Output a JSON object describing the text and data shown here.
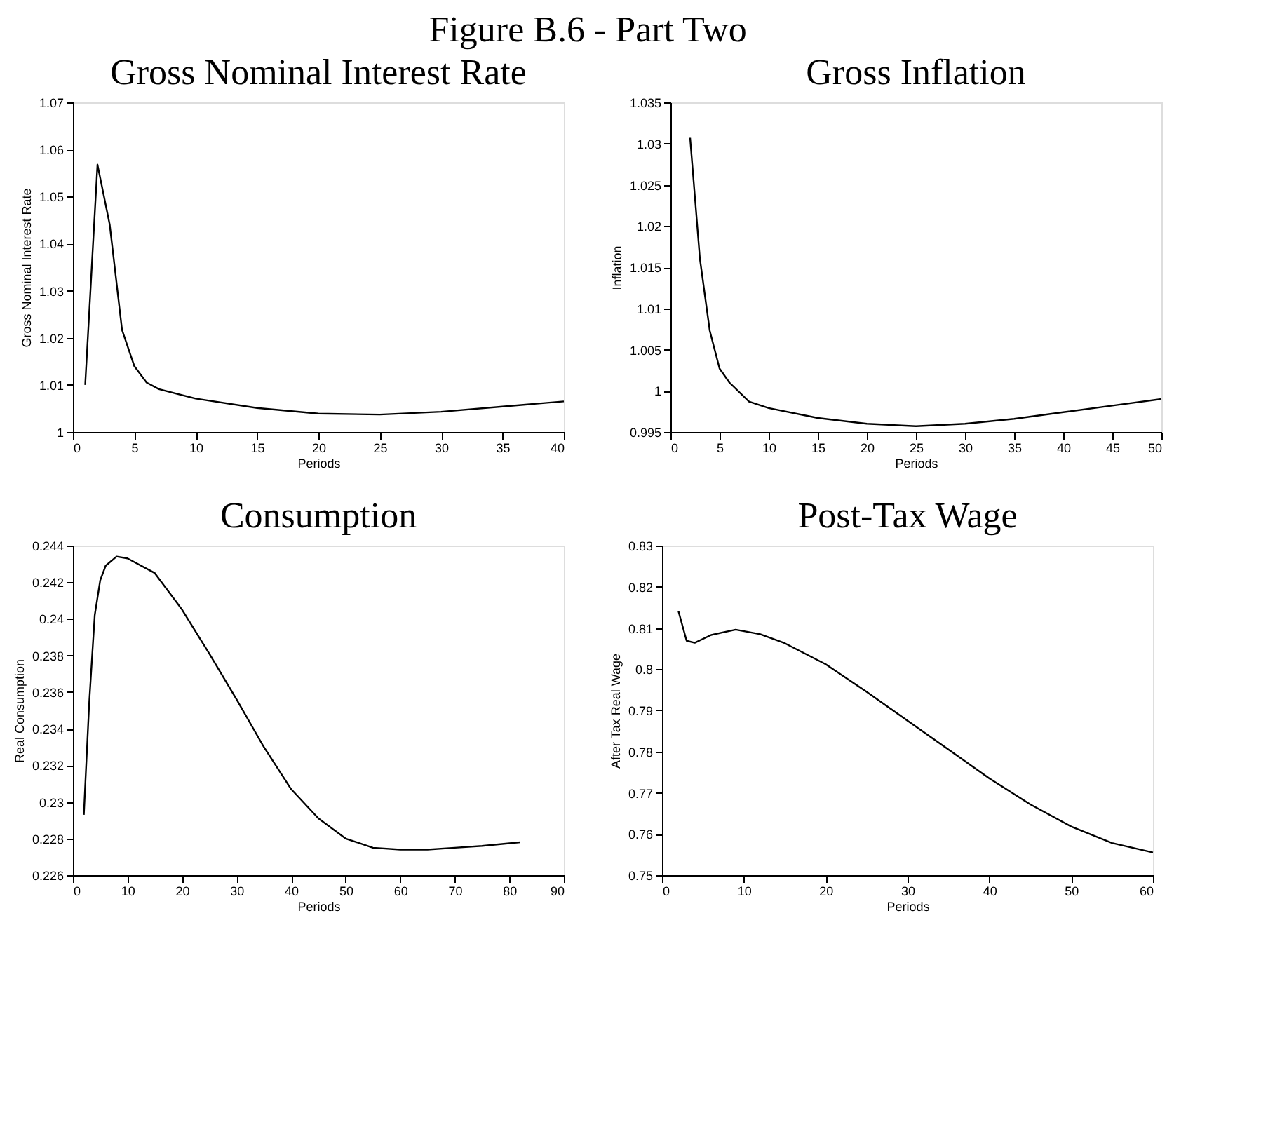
{
  "chart_data": [
    {
      "type": "line",
      "title": "Gross Nominal Interest Rate",
      "annotations": [
        "Figure B.6 - Part Two"
      ],
      "xlabel": "Periods",
      "ylabel": "Gross Nominal Interest Rate",
      "grid": false,
      "series": [
        {
          "color": "#000000",
          "x": [
            1,
            2,
            3,
            4,
            5,
            6,
            7,
            10,
            15,
            20,
            25,
            30,
            35,
            40
          ],
          "values": [
            1.01,
            1.0568,
            1.044,
            1.0217,
            1.014,
            1.0105,
            1.0091,
            1.0071,
            1.0051,
            1.0039,
            1.0037,
            1.0043,
            1.0054,
            1.0065
          ]
        }
      ],
      "xlim": [
        0,
        40
      ],
      "xticks": [
        0,
        5,
        10,
        15,
        20,
        25,
        30,
        35,
        40
      ],
      "ylim": [
        1,
        1.07
      ],
      "yticks": [
        1,
        1.01,
        1.02,
        1.03,
        1.04,
        1.05,
        1.06,
        1.07
      ]
    },
    {
      "type": "line",
      "title": "Gross Inflation",
      "xlabel": "Periods",
      "ylabel": "Inflation",
      "grid": false,
      "series": [
        {
          "color": "#000000",
          "x": [
            2,
            3,
            4,
            5,
            6,
            8,
            10,
            15,
            20,
            25,
            30,
            35,
            40,
            45,
            50
          ],
          "values": [
            1.0307,
            1.016,
            1.0073,
            1.0027,
            1.001,
            0.9987,
            0.9979,
            0.9967,
            0.996,
            0.9957,
            0.996,
            0.9966,
            0.9974,
            0.9982,
            0.999
          ]
        }
      ],
      "xlim": [
        0,
        50
      ],
      "xticks": [
        0,
        5,
        10,
        15,
        20,
        25,
        30,
        35,
        40,
        45,
        50
      ],
      "ylim": [
        0.995,
        1.035
      ],
      "yticks": [
        0.995,
        1,
        1.005,
        1.01,
        1.015,
        1.02,
        1.025,
        1.03,
        1.035
      ]
    },
    {
      "type": "line",
      "title": "Consumption",
      "xlabel": "Periods",
      "ylabel": "Real Consumption",
      "grid": false,
      "series": [
        {
          "color": "#000000",
          "x": [
            2,
            3,
            4,
            5,
            6,
            8,
            10,
            15,
            20,
            25,
            30,
            35,
            40,
            45,
            50,
            55,
            60,
            65,
            70,
            75,
            82
          ],
          "values": [
            0.2293,
            0.2355,
            0.2402,
            0.2421,
            0.2429,
            0.2434,
            0.2433,
            0.2425,
            0.2405,
            0.2381,
            0.2356,
            0.233,
            0.2307,
            0.2291,
            0.228,
            0.2275,
            0.2274,
            0.2274,
            0.2275,
            0.2276,
            0.2278
          ]
        }
      ],
      "xlim": [
        0,
        90
      ],
      "xticks": [
        0,
        10,
        20,
        30,
        40,
        50,
        60,
        70,
        80,
        90
      ],
      "ylim": [
        0.226,
        0.244
      ],
      "yticks": [
        0.226,
        0.228,
        0.23,
        0.232,
        0.234,
        0.236,
        0.238,
        0.24,
        0.242,
        0.244
      ]
    },
    {
      "type": "line",
      "title": "Post-Tax Wage",
      "xlabel": "Periods",
      "ylabel": "After Tax Real Wage",
      "grid": false,
      "series": [
        {
          "color": "#000000",
          "x": [
            2,
            3,
            4,
            6,
            9,
            12,
            15,
            20,
            25,
            30,
            35,
            40,
            45,
            50,
            55,
            60
          ],
          "values": [
            0.8141,
            0.8069,
            0.8064,
            0.8083,
            0.8096,
            0.8085,
            0.8063,
            0.8012,
            0.7945,
            0.7875,
            0.7805,
            0.7735,
            0.7672,
            0.7618,
            0.7578,
            0.7555
          ]
        }
      ],
      "xlim": [
        0,
        60
      ],
      "xticks": [
        0,
        10,
        20,
        30,
        40,
        50,
        60
      ],
      "ylim": [
        0.75,
        0.83
      ],
      "yticks": [
        0.75,
        0.76,
        0.77,
        0.78,
        0.79,
        0.8,
        0.81,
        0.82,
        0.83
      ]
    }
  ]
}
